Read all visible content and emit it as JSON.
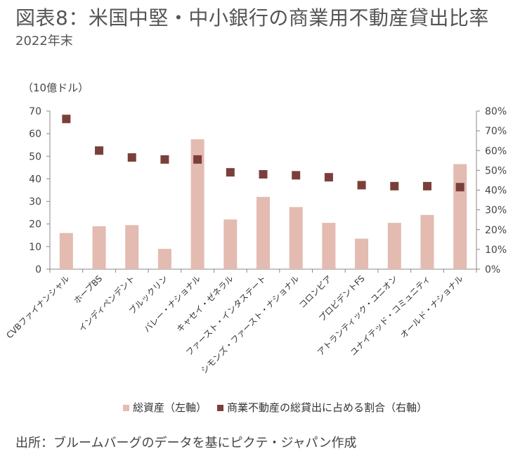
{
  "header": {
    "title": "図表8：米国中堅・中小銀行の商業用不動産貸出比率",
    "subtitle": "2022年末",
    "unit_label": "（10億ドル）"
  },
  "footer": {
    "source": "出所：ブルームバーグのデータを基にピクテ・ジャパン作成"
  },
  "chart_data": {
    "type": "bar",
    "categories": [
      "CVBファイナンシャル",
      "ホープBS",
      "インディペンデント",
      "ブルックリン",
      "バレー・ナショナル",
      "キャセイ・ゼネラル",
      "ファースト・インタステート",
      "シモンズ・ファースト・ナショナル",
      "コロンビア",
      "プロビデントFS",
      "アトランティック・ユニオン",
      "ユナイテッド・コミュニティ",
      "オールド・ナショナル"
    ],
    "series": [
      {
        "name": "総資産（左軸）",
        "type": "bar",
        "axis": "left",
        "values": [
          16,
          19,
          19.5,
          9,
          57.5,
          22,
          32,
          27.5,
          20.5,
          13.5,
          20.5,
          24,
          46.5
        ]
      },
      {
        "name": "商業不動産の総貸出に占める割合（右軸）",
        "type": "marker",
        "axis": "right",
        "values": [
          76,
          60,
          56.5,
          55.5,
          55.5,
          49,
          48,
          47.5,
          46.5,
          42.5,
          42,
          42,
          41.5
        ]
      }
    ],
    "y_left": {
      "min": 0,
      "max": 70,
      "step": 10,
      "ticks": [
        "0",
        "10",
        "20",
        "30",
        "40",
        "50",
        "60",
        "70"
      ]
    },
    "y_right": {
      "min": 0,
      "max": 80,
      "step": 10,
      "ticks": [
        "0%",
        "10%",
        "20%",
        "30%",
        "40%",
        "50%",
        "60%",
        "70%",
        "80%"
      ]
    },
    "legend_position": "bottom",
    "grid": false,
    "colors": {
      "bar": "#e3bbb1",
      "marker": "#7b3f3a",
      "axis": "#888888"
    }
  }
}
